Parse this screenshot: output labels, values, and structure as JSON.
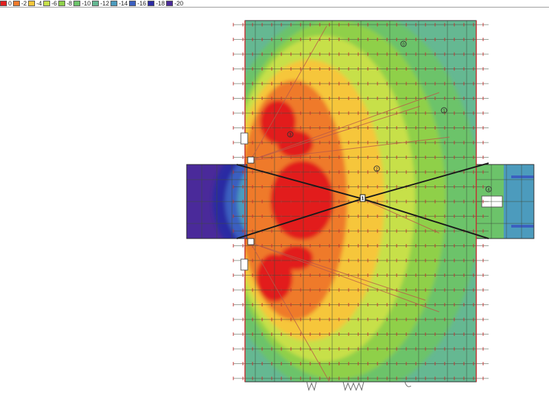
{
  "legend": [
    {
      "label": "0",
      "color": "#e21f1f"
    },
    {
      "label": "-2",
      "color": "#ef7a2b"
    },
    {
      "label": "-4",
      "color": "#f6c63a"
    },
    {
      "label": "-6",
      "color": "#c7e04a"
    },
    {
      "label": "-8",
      "color": "#8fd04a"
    },
    {
      "label": "-10",
      "color": "#6cc36a"
    },
    {
      "label": "-12",
      "color": "#65b892"
    },
    {
      "label": "-14",
      "color": "#4c9bbd"
    },
    {
      "label": "-16",
      "color": "#3b5fc0"
    },
    {
      "label": "-18",
      "color": "#2b2aa3"
    },
    {
      "label": "-20",
      "color": "#4a2a9a"
    }
  ],
  "markers": {
    "m0": "0",
    "m1": "1",
    "m2": "2",
    "m3": "3",
    "m4": "4",
    "source": "1"
  }
}
